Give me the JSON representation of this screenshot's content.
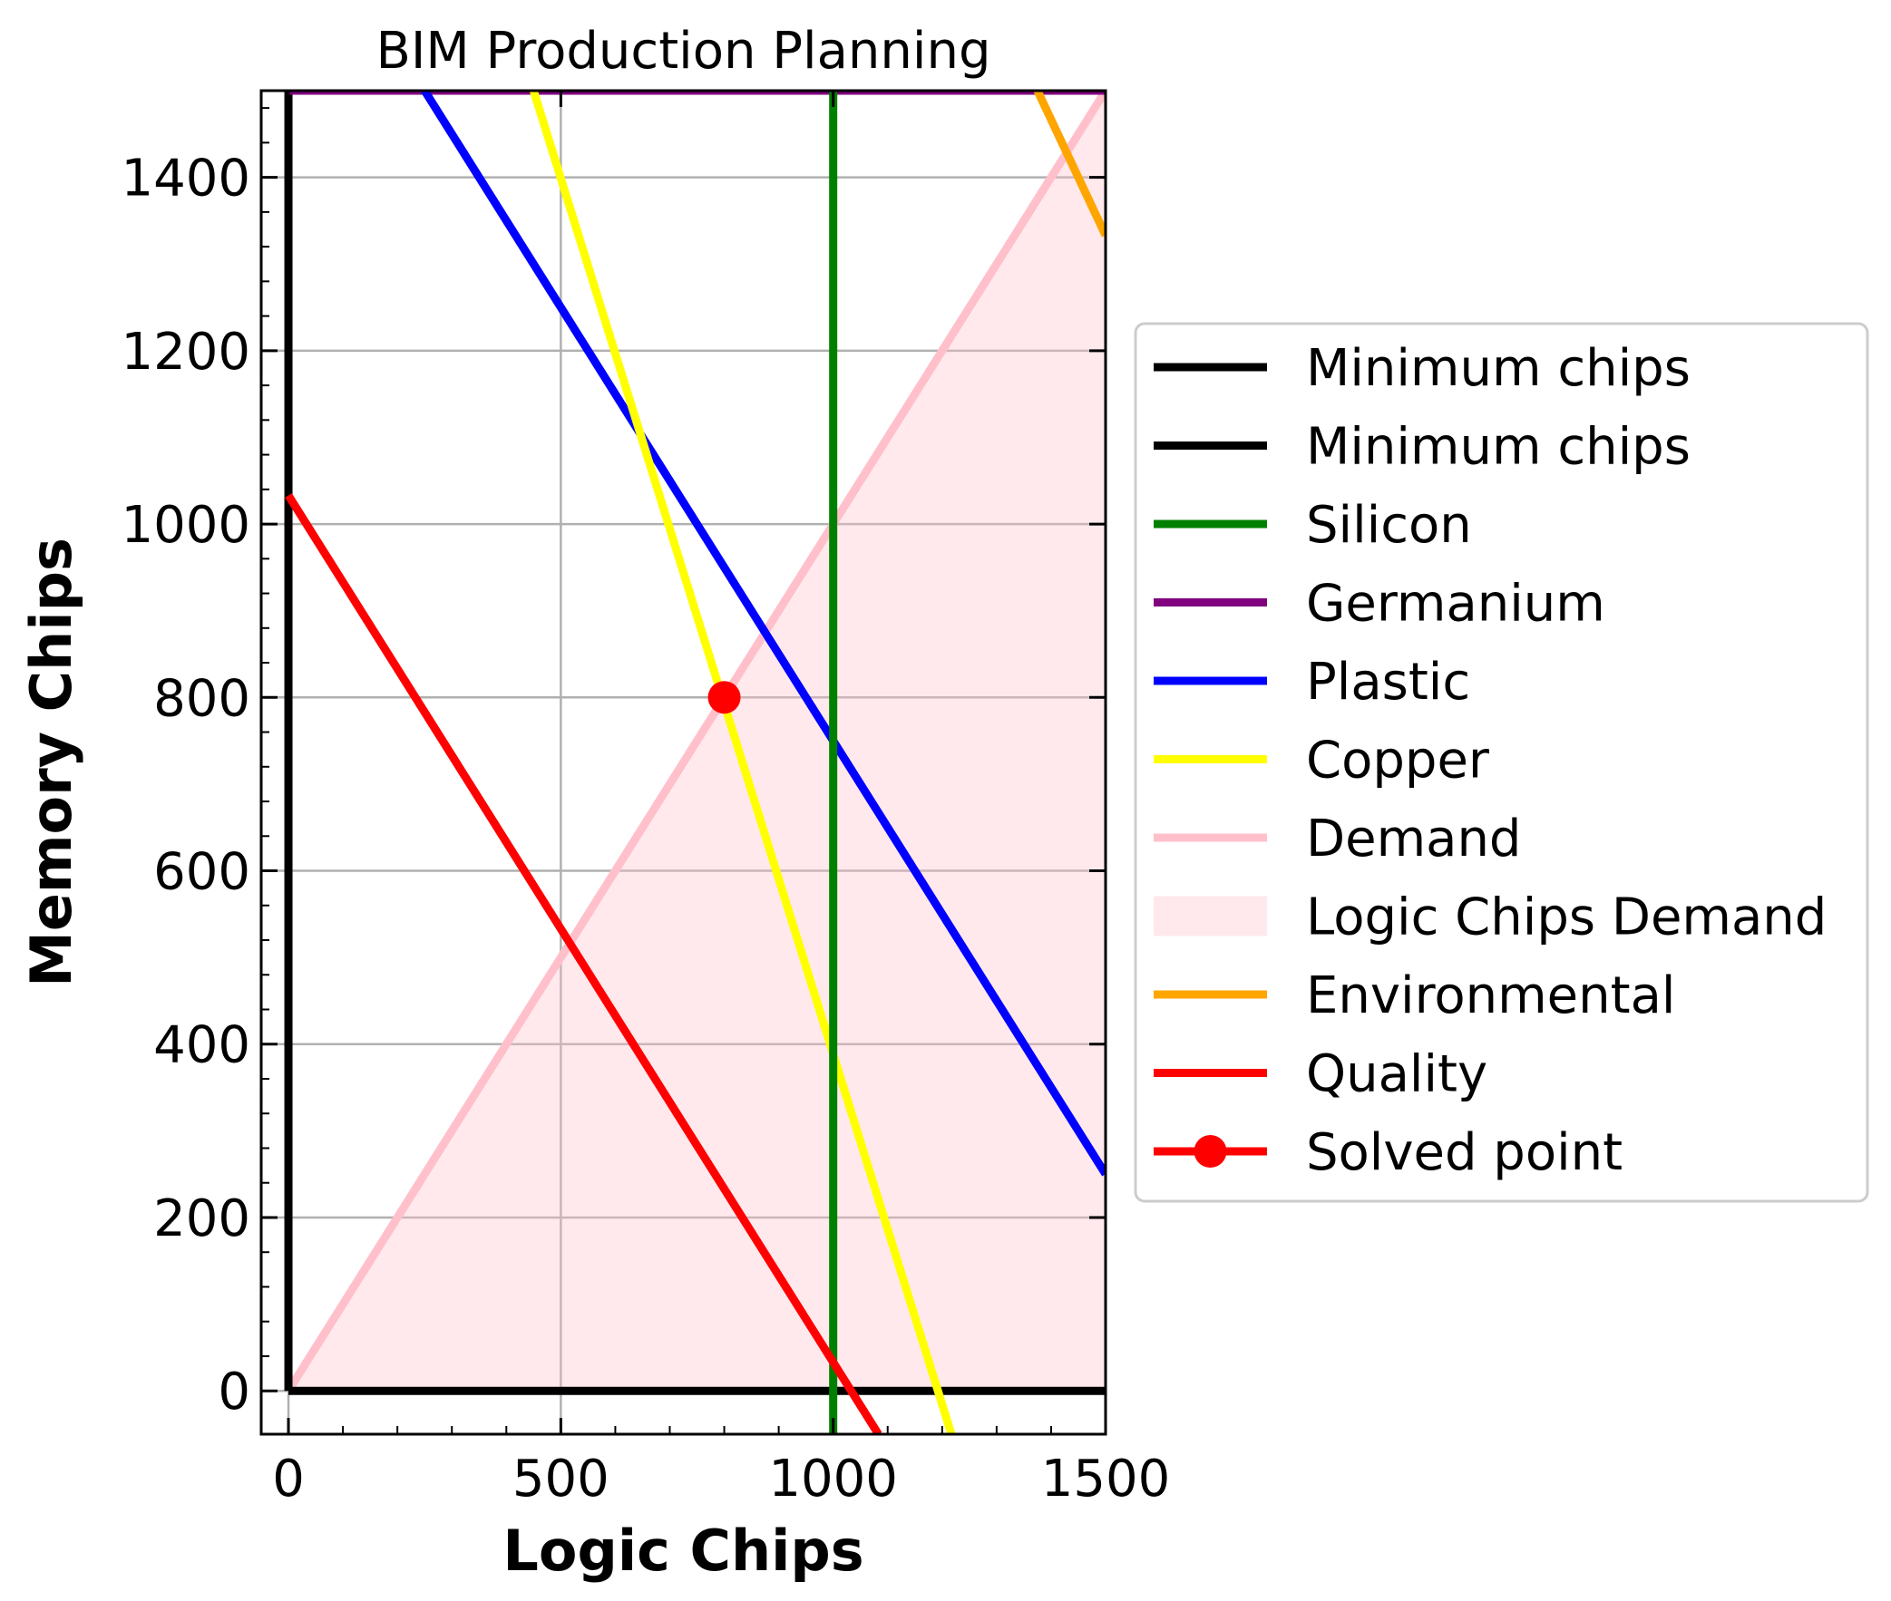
{
  "chart_data": {
    "type": "line",
    "title": "BIM Production Planning",
    "xlabel": "Logic Chips",
    "ylabel": "Memory Chips",
    "xlim": [
      -50,
      1500
    ],
    "ylim": [
      -50,
      1500
    ],
    "xticks": [
      0,
      500,
      1000,
      1500
    ],
    "yticks": [
      0,
      200,
      400,
      600,
      800,
      1000,
      1200,
      1400
    ],
    "grid": true,
    "legend_position": "right",
    "series": [
      {
        "name": "Minimum chips",
        "color": "#000000",
        "x": [
          0,
          0
        ],
        "y": [
          0,
          1500
        ]
      },
      {
        "name": "Minimum chips",
        "color": "#000000",
        "x": [
          0,
          1500
        ],
        "y": [
          0,
          0
        ]
      },
      {
        "name": "Silicon",
        "color": "#008000",
        "x": [
          1000,
          1000
        ],
        "y": [
          -50,
          1500
        ]
      },
      {
        "name": "Germanium",
        "color": "#800080",
        "x": [
          0,
          1500
        ],
        "y": [
          1500,
          1500
        ]
      },
      {
        "name": "Plastic",
        "color": "#0000ff",
        "x": [
          250,
          1500
        ],
        "y": [
          1500,
          250
        ]
      },
      {
        "name": "Copper",
        "color": "#ffff00",
        "x": [
          450,
          1217
        ],
        "y": [
          1500,
          -50
        ]
      },
      {
        "name": "Demand",
        "color": "#ffc0cb",
        "x": [
          0,
          1500
        ],
        "y": [
          0,
          1500
        ]
      },
      {
        "name": "Environmental",
        "color": "#ffa500",
        "x": [
          1375,
          1500
        ],
        "y": [
          1500,
          1333
        ]
      },
      {
        "name": "Quality",
        "color": "#ff0000",
        "x": [
          0,
          1083
        ],
        "y": [
          1033,
          -50
        ]
      }
    ],
    "fill": {
      "name": "Logic Chips Demand",
      "color": "#ffc0cb",
      "opacity": 0.35,
      "polygon_x": [
        0,
        1500,
        1500
      ],
      "polygon_y": [
        0,
        0,
        1500
      ]
    },
    "solved_point": {
      "name": "Solved point",
      "color": "#ff0000",
      "x": 800,
      "y": 800
    },
    "legend": [
      "Minimum chips",
      "Minimum chips",
      "Silicon",
      "Germanium",
      "Plastic",
      "Copper",
      "Demand",
      "Logic Chips Demand",
      "Environmental",
      "Quality",
      "Solved point"
    ]
  }
}
